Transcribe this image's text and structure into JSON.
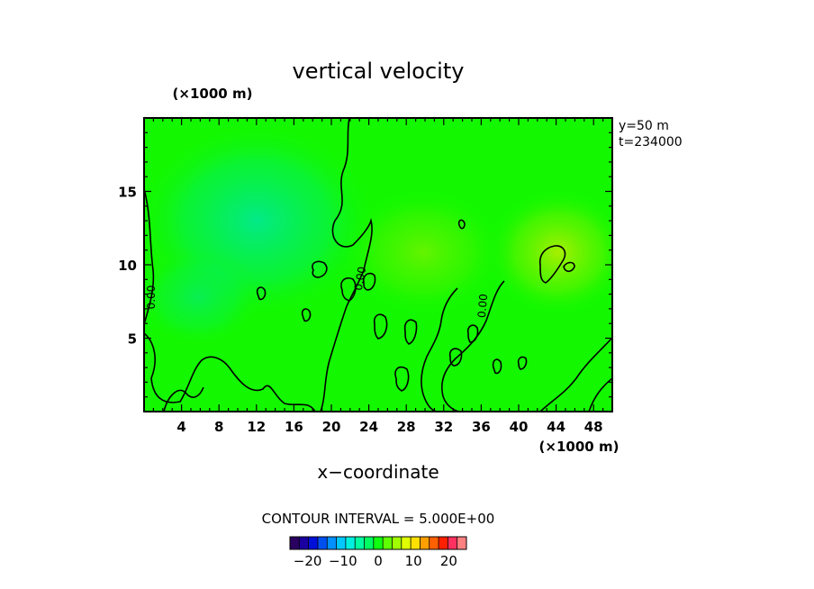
{
  "chart_data": {
    "type": "heatmap",
    "title": "vertical velocity",
    "xlabel": "x−coordinate",
    "x_unit": "(×1000 m)",
    "y_unit": "(×1000 m)",
    "xlim": [
      0,
      50
    ],
    "ylim": [
      0,
      20
    ],
    "x_ticks": [
      4,
      8,
      12,
      16,
      20,
      24,
      28,
      32,
      36,
      40,
      44,
      48
    ],
    "y_ticks": [
      5,
      10,
      15
    ],
    "info_lines": [
      "y=50  m",
      "t=234000"
    ],
    "contour_interval_text": "CONTOUR INTERVAL = 5.000E+00",
    "contour_labels": [
      "0.00",
      "0.00",
      "0.00"
    ],
    "colorbar": {
      "range": [
        -25,
        25
      ],
      "ticks": [
        -20,
        -10,
        0,
        10,
        20
      ],
      "tick_labels": [
        "−20",
        "−10",
        "0",
        "10",
        "20"
      ],
      "colors": [
        "#2a0060",
        "#1a00a0",
        "#0010d8",
        "#0050f0",
        "#0090ff",
        "#00c8ff",
        "#00f0e0",
        "#00ffa0",
        "#00ff60",
        "#10ff10",
        "#60ff00",
        "#a0ff00",
        "#e0ff00",
        "#ffe000",
        "#ffa000",
        "#ff6000",
        "#ff2000",
        "#ff3060",
        "#ff8080"
      ]
    },
    "field_background_color": "#13f800",
    "grid": false
  }
}
